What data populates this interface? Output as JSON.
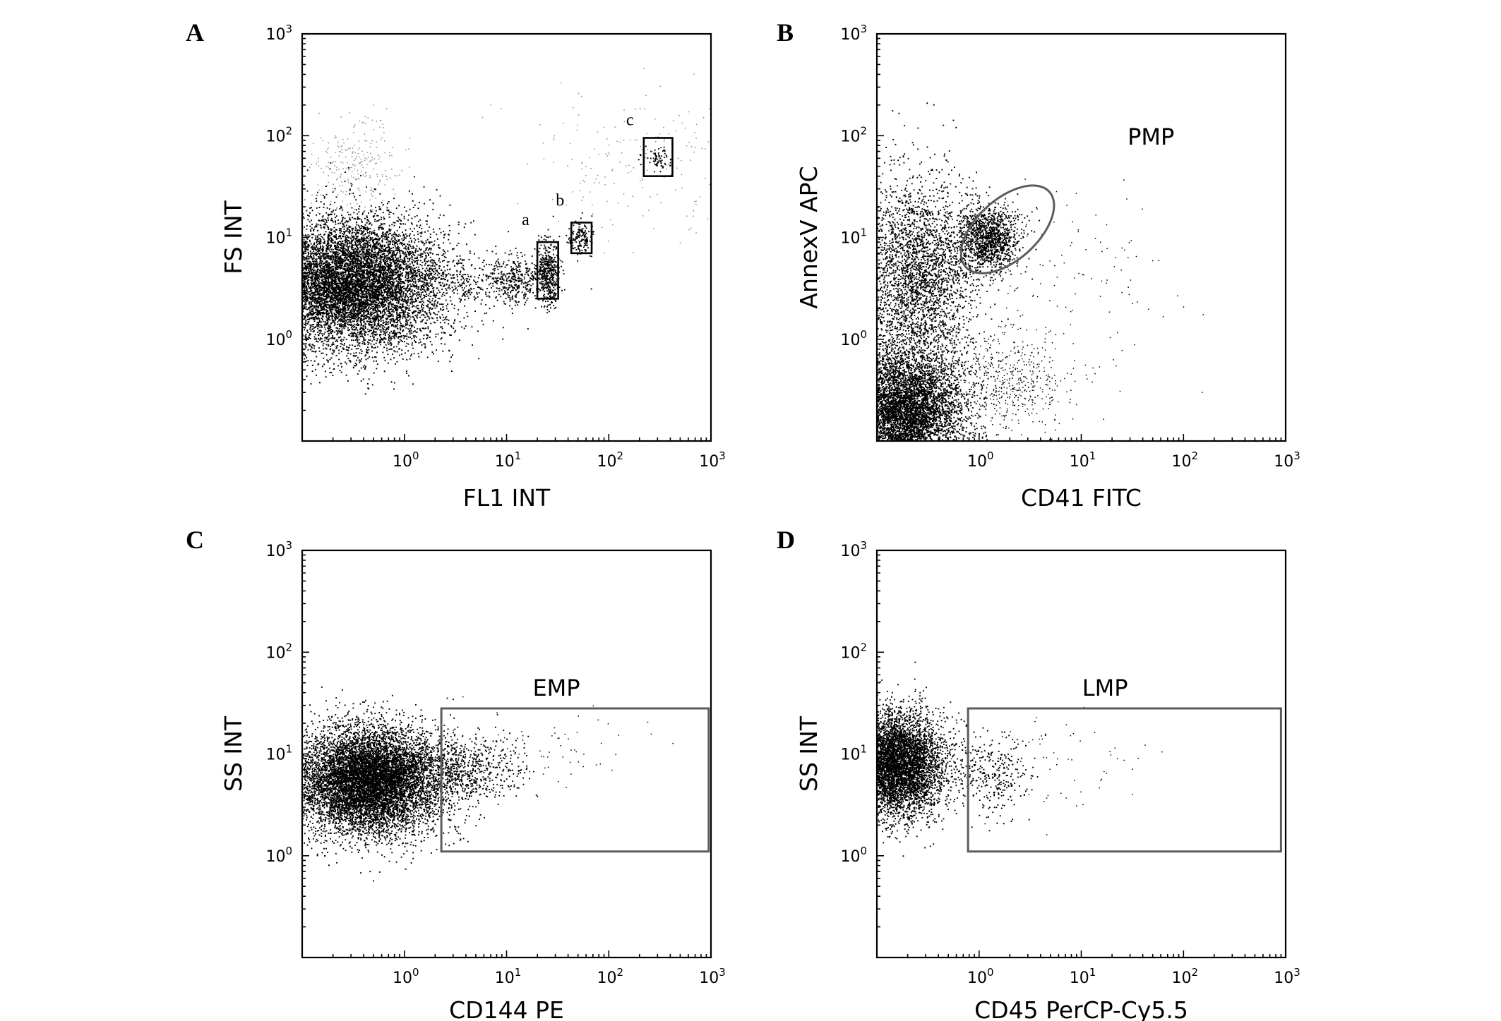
{
  "chart_data": [
    {
      "panel": "A",
      "type": "scatter",
      "xlabel": "FL1 INT",
      "ylabel": "FS INT",
      "x_scale": "log",
      "y_scale": "log",
      "xlim": [
        0.1,
        1000
      ],
      "ylim": [
        0.1,
        1000
      ],
      "x_ticks": [
        1,
        10,
        100,
        1000
      ],
      "y_ticks": [
        1,
        10,
        100,
        1000
      ],
      "tick_labels": [
        "10^0",
        "10^1",
        "10^2",
        "10^3"
      ],
      "populations": [
        {
          "center": [
            0.3,
            3.5
          ],
          "spread": [
            0.45,
            0.32
          ],
          "count": 9000,
          "density": "very dense"
        },
        {
          "center": [
            0.32,
            50
          ],
          "spread": [
            0.2,
            0.22
          ],
          "count": 260,
          "density": "sparse gray"
        },
        {
          "center": [
            3.5,
            3.8
          ],
          "spread": [
            0.35,
            0.13
          ],
          "count": 240,
          "density": "bridge"
        },
        {
          "center": [
            12,
            3.8
          ],
          "spread": [
            0.12,
            0.12
          ],
          "count": 320,
          "density": "medium"
        },
        {
          "center": [
            25,
            4.5
          ],
          "spread": [
            0.06,
            0.16
          ],
          "count": 480,
          "density": "dense"
        },
        {
          "center": [
            52,
            10
          ],
          "spread": [
            0.06,
            0.08
          ],
          "count": 160,
          "density": "medium"
        },
        {
          "center": [
            300,
            60
          ],
          "spread": [
            0.06,
            0.06
          ],
          "count": 70,
          "density": "medium"
        },
        {
          "center": [
            300,
            55
          ],
          "spread": [
            0.55,
            0.35
          ],
          "count": 220,
          "density": "sparse gray"
        }
      ],
      "gates": [
        {
          "label": "a",
          "shape": "rectangle",
          "x": [
            20,
            32
          ],
          "y": [
            2.5,
            9
          ]
        },
        {
          "label": "b",
          "shape": "rectangle",
          "x": [
            43,
            68
          ],
          "y": [
            7,
            14
          ]
        },
        {
          "label": "c",
          "shape": "rectangle",
          "x": [
            220,
            420
          ],
          "y": [
            40,
            95
          ]
        }
      ]
    },
    {
      "panel": "B",
      "type": "scatter",
      "xlabel": "CD41 FITC",
      "ylabel": "AnnexV APC",
      "x_scale": "log",
      "y_scale": "log",
      "xlim": [
        0.1,
        1000
      ],
      "ylim": [
        0.1,
        1000
      ],
      "x_ticks": [
        1,
        10,
        100,
        1000
      ],
      "y_ticks": [
        1,
        10,
        100,
        1000
      ],
      "tick_labels": [
        "10^0",
        "10^1",
        "10^2",
        "10^3"
      ],
      "populations": [
        {
          "center": [
            0.18,
            0.2
          ],
          "spread": [
            0.3,
            0.3
          ],
          "count": 6000,
          "density": "very dense"
        },
        {
          "center": [
            0.25,
            4
          ],
          "spread": [
            0.28,
            0.5
          ],
          "count": 3000,
          "density": "dense"
        },
        {
          "center": [
            1.2,
            10
          ],
          "spread": [
            0.15,
            0.16
          ],
          "count": 1300,
          "density": "dense"
        },
        {
          "center": [
            2,
            0.4
          ],
          "spread": [
            0.3,
            0.25
          ],
          "count": 500,
          "density": "sparse"
        },
        {
          "center": [
            8,
            3
          ],
          "spread": [
            0.55,
            0.55
          ],
          "count": 120,
          "density": "very sparse"
        }
      ],
      "gates": [
        {
          "label": "PMP",
          "shape": "ellipse",
          "center": [
            1.9,
            12
          ],
          "radius_decades": [
            0.55,
            0.48
          ],
          "rotation_deg": -42
        }
      ]
    },
    {
      "panel": "C",
      "type": "scatter",
      "xlabel": "CD144 PE",
      "ylabel": "SS INT",
      "x_scale": "log",
      "y_scale": "log",
      "xlim": [
        0.1,
        1000
      ],
      "ylim": [
        0.1,
        1000
      ],
      "x_ticks": [
        1,
        10,
        100,
        1000
      ],
      "y_ticks": [
        1,
        10,
        100,
        1000
      ],
      "tick_labels": [
        "10^0",
        "10^1",
        "10^2",
        "10^3"
      ],
      "populations": [
        {
          "center": [
            0.45,
            5.5
          ],
          "spread": [
            0.35,
            0.26
          ],
          "count": 9000,
          "density": "very dense"
        },
        {
          "center": [
            3.5,
            7
          ],
          "spread": [
            0.3,
            0.18
          ],
          "count": 700,
          "density": "medium"
        },
        {
          "center": [
            25,
            12
          ],
          "spread": [
            0.45,
            0.2
          ],
          "count": 60,
          "density": "sparse"
        }
      ],
      "gates": [
        {
          "label": "EMP",
          "shape": "rectangle",
          "x": [
            2.3,
            950
          ],
          "y": [
            1.1,
            28
          ]
        }
      ]
    },
    {
      "panel": "D",
      "type": "scatter",
      "xlabel": "CD45 PerCP-Cy5.5",
      "ylabel": "SS INT",
      "x_scale": "log",
      "y_scale": "log",
      "xlim": [
        0.1,
        1000
      ],
      "ylim": [
        0.1,
        1000
      ],
      "x_ticks": [
        1,
        10,
        100,
        1000
      ],
      "y_ticks": [
        1,
        10,
        100,
        1000
      ],
      "tick_labels": [
        "10^0",
        "10^1",
        "10^2",
        "10^3"
      ],
      "populations": [
        {
          "center": [
            0.16,
            8
          ],
          "spread": [
            0.22,
            0.25
          ],
          "count": 5500,
          "density": "very dense"
        },
        {
          "center": [
            1.3,
            6
          ],
          "spread": [
            0.18,
            0.2
          ],
          "count": 320,
          "density": "medium"
        },
        {
          "center": [
            5,
            8
          ],
          "spread": [
            0.4,
            0.25
          ],
          "count": 60,
          "density": "sparse"
        }
      ],
      "gates": [
        {
          "label": "LMP",
          "shape": "rectangle",
          "x": [
            0.78,
            900
          ],
          "y": [
            1.1,
            28
          ]
        }
      ]
    }
  ],
  "text": {
    "tick_base": "10",
    "tick_exponents": [
      "0",
      "1",
      "2",
      "3"
    ]
  },
  "colors": {
    "events": "#000000",
    "sparse_events": "#8a8a8a",
    "gate_outline": "#5c5c5c",
    "subgate_outline": "#000000"
  }
}
